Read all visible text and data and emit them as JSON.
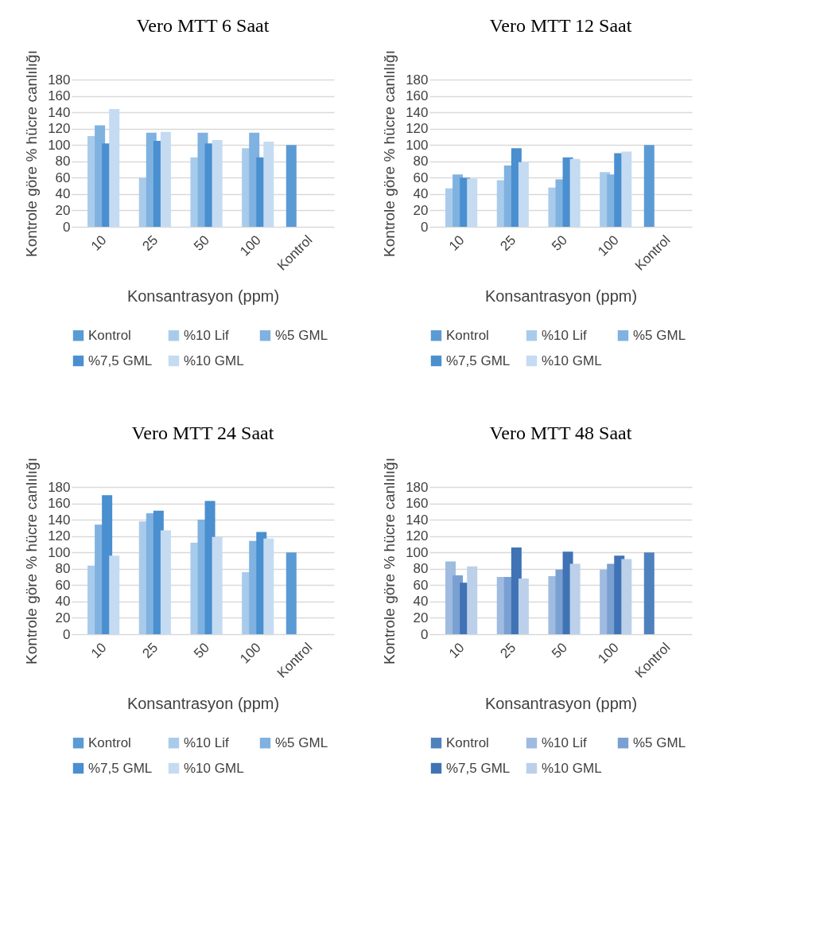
{
  "chart_data": [
    {
      "type": "bar",
      "title": "Vero MTT 6 Saat",
      "xlabel": "Konsantrasyon (ppm)",
      "ylabel": "Kontrole göre % hücre canlılığı",
      "categories": [
        "10",
        "25",
        "50",
        "100",
        "Kontrol"
      ],
      "ylim": [
        0,
        180
      ],
      "yticks": [
        0,
        20,
        40,
        60,
        80,
        100,
        120,
        140,
        160,
        180
      ],
      "grid": "y",
      "legend": "bottom",
      "series": [
        {
          "name": "Kontrol",
          "color": "#5b9bd5",
          "values": [
            null,
            null,
            null,
            null,
            100
          ]
        },
        {
          "name": "%10 Lif",
          "color": "#a9cbeb",
          "values": [
            111,
            60,
            85,
            96,
            null
          ]
        },
        {
          "name": "%5 GML",
          "color": "#7fb2e0",
          "values": [
            124,
            115,
            115,
            115,
            null
          ]
        },
        {
          "name": "%7,5 GML",
          "color": "#4a8fcf",
          "values": [
            102,
            105,
            102,
            85,
            null
          ]
        },
        {
          "name": "%10 GML",
          "color": "#c4dbf2",
          "values": [
            144,
            116,
            106,
            104,
            null
          ]
        }
      ]
    },
    {
      "type": "bar",
      "title": "Vero MTT 12 Saat",
      "xlabel": "Konsantrasyon (ppm)",
      "ylabel": "Kontrole göre % hücre canlılığı",
      "categories": [
        "10",
        "25",
        "50",
        "100",
        "Kontrol"
      ],
      "ylim": [
        0,
        180
      ],
      "yticks": [
        0,
        20,
        40,
        60,
        80,
        100,
        120,
        140,
        160,
        180
      ],
      "grid": "y",
      "legend": "bottom",
      "series": [
        {
          "name": "Kontrol",
          "color": "#5b9bd5",
          "values": [
            null,
            null,
            null,
            null,
            100
          ]
        },
        {
          "name": "%10 Lif",
          "color": "#a9cbeb",
          "values": [
            47,
            57,
            48,
            67,
            null
          ]
        },
        {
          "name": "%5 GML",
          "color": "#7fb2e0",
          "values": [
            64,
            75,
            58,
            64,
            null
          ]
        },
        {
          "name": "%7,5 GML",
          "color": "#4a8fcf",
          "values": [
            60,
            96,
            85,
            90,
            null
          ]
        },
        {
          "name": "%10 GML",
          "color": "#c4dbf2",
          "values": [
            59,
            79,
            83,
            92,
            null
          ]
        }
      ]
    },
    {
      "type": "bar",
      "title": "Vero MTT 24 Saat",
      "xlabel": "Konsantrasyon (ppm)",
      "ylabel": "Kontrole göre % hücre canlılığı",
      "categories": [
        "10",
        "25",
        "50",
        "100",
        "Kontrol"
      ],
      "ylim": [
        0,
        180
      ],
      "yticks": [
        0,
        20,
        40,
        60,
        80,
        100,
        120,
        140,
        160,
        180
      ],
      "grid": "y",
      "legend": "bottom",
      "series": [
        {
          "name": "Kontrol",
          "color": "#5b9bd5",
          "values": [
            null,
            null,
            null,
            null,
            100
          ]
        },
        {
          "name": "%10 Lif",
          "color": "#a9cbeb",
          "values": [
            84,
            138,
            112,
            76,
            null
          ]
        },
        {
          "name": "%5 GML",
          "color": "#7fb2e0",
          "values": [
            134,
            148,
            140,
            114,
            null
          ]
        },
        {
          "name": "%7,5 GML",
          "color": "#4a8fcf",
          "values": [
            170,
            151,
            163,
            125,
            null
          ]
        },
        {
          "name": "%10 GML",
          "color": "#c4dbf2",
          "values": [
            96,
            127,
            119,
            117,
            null
          ]
        }
      ]
    },
    {
      "type": "bar",
      "title": "Vero MTT 48 Saat",
      "xlabel": "Konsantrasyon (ppm)",
      "ylabel": "Kontrole göre % hücre canlılığı",
      "categories": [
        "10",
        "25",
        "50",
        "100",
        "Kontrol"
      ],
      "ylim": [
        0,
        180
      ],
      "yticks": [
        0,
        20,
        40,
        60,
        80,
        100,
        120,
        140,
        160,
        180
      ],
      "grid": "y",
      "legend": "bottom",
      "series": [
        {
          "name": "Kontrol",
          "color": "#4f81bd",
          "values": [
            null,
            null,
            null,
            null,
            100
          ]
        },
        {
          "name": "%10 Lif",
          "color": "#9fbbe0",
          "values": [
            89,
            70,
            71,
            79,
            null
          ]
        },
        {
          "name": "%5 GML",
          "color": "#7aa0d2",
          "values": [
            72,
            70,
            79,
            86,
            null
          ]
        },
        {
          "name": "%7,5 GML",
          "color": "#3f73b5",
          "values": [
            63,
            106,
            101,
            96,
            null
          ]
        },
        {
          "name": "%10 GML",
          "color": "#bcd0ea",
          "values": [
            83,
            68,
            86,
            92,
            null
          ]
        }
      ]
    }
  ]
}
